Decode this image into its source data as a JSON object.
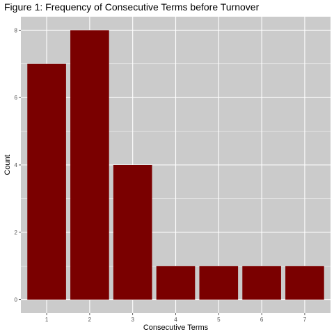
{
  "chart_data": {
    "type": "bar",
    "title": "Figure 1: Frequency of Consecutive Terms before Turnover",
    "xlabel": "Consecutive Terms",
    "ylabel": "Count",
    "categories": [
      "1",
      "2",
      "3",
      "4",
      "5",
      "6",
      "7"
    ],
    "values": [
      7,
      8,
      4,
      1,
      1,
      1,
      1
    ],
    "ylim": [
      -0.4,
      8.4
    ],
    "yticks": [
      "0",
      "2",
      "4",
      "6",
      "8"
    ],
    "grid": true,
    "colors": {
      "bar": "#7A0000",
      "panel": "#CBCBCB",
      "gridline": "#FFFFFF"
    }
  }
}
